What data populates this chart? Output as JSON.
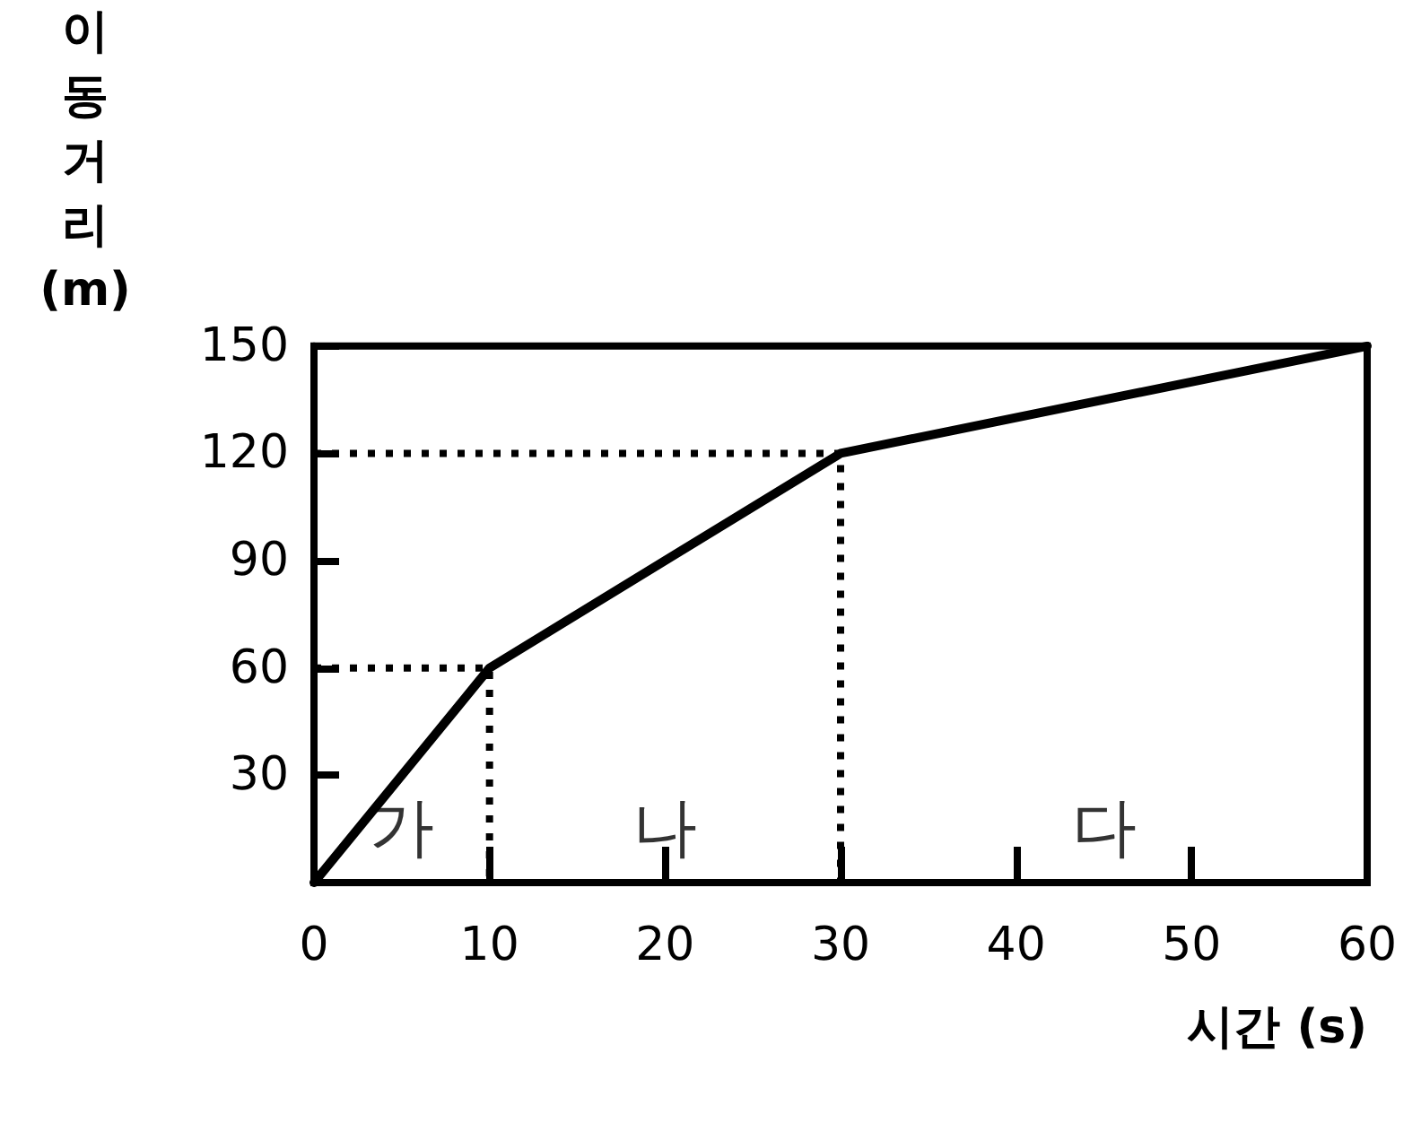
{
  "chart_data": {
    "type": "line",
    "xlabel": "시간 (s)",
    "ylabel": "이동거리 (m)",
    "xlim": [
      0,
      60
    ],
    "ylim": [
      0,
      150
    ],
    "xticks": [
      0,
      10,
      20,
      30,
      40,
      50,
      60
    ],
    "yticks": [
      {
        "value": 0,
        "label": null
      },
      30,
      60,
      90,
      120,
      150
    ],
    "grid": false,
    "marker": "none",
    "series": [
      {
        "x": [
          0,
          10,
          30,
          60
        ],
        "values": [
          0,
          60,
          120,
          150
        ],
        "color": "#000000",
        "line_style": "solid"
      },
      {
        "x": [
          0,
          10,
          10
        ],
        "values": [
          60,
          60,
          0
        ],
        "color": "#000000",
        "line_style": "dotted"
      },
      {
        "x": [
          0,
          30,
          30
        ],
        "values": [
          120,
          120,
          0
        ],
        "color": "#000000",
        "line_style": "dotted"
      }
    ],
    "annotations": [
      "가",
      "나",
      "다"
    ]
  }
}
